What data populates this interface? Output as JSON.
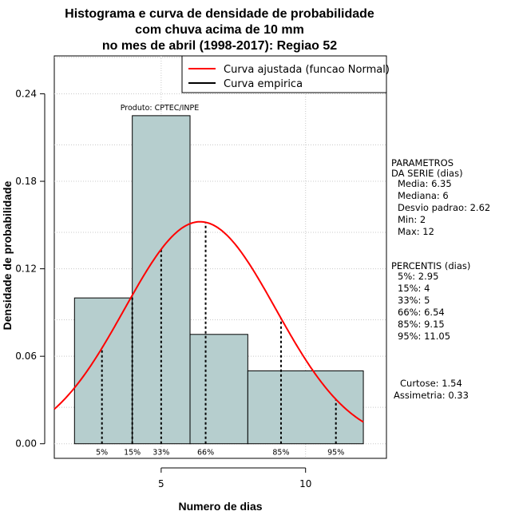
{
  "chart_data": {
    "type": "bar",
    "title_lines": [
      "Histograma e curva de densidade de probabilidade",
      "com chuva acima de 10 mm",
      "no mes de abril (1998-2017): Regiao 52"
    ],
    "xlabel": "Numero de dias",
    "ylabel": "Densidade de probabilidade",
    "xlim": [
      1.3,
      12.8
    ],
    "ylim": [
      -0.01,
      0.266
    ],
    "xticks": [
      5,
      10
    ],
    "yticks": [
      0.0,
      0.06,
      0.12,
      0.18,
      0.24
    ],
    "ytick_labels": [
      "0.00",
      "0.06",
      "0.12",
      "0.18",
      "0.24"
    ],
    "grid": true,
    "producer_note": "Produto: CPTEC/INPE",
    "histogram": [
      {
        "x0": 2,
        "x1": 4,
        "density": 0.1
      },
      {
        "x0": 4,
        "x1": 6,
        "density": 0.225
      },
      {
        "x0": 6,
        "x1": 8,
        "density": 0.075
      },
      {
        "x0": 8,
        "x1": 12,
        "density": 0.05
      }
    ],
    "normal_curve": {
      "mean": 6.35,
      "sd": 2.62,
      "name": "Curva ajustada (funcao Normal)",
      "color": "#ff0000"
    },
    "empirical_curve": {
      "name": "Curva empirica",
      "color": "#000000"
    },
    "percentile_markers": [
      {
        "label": "5%",
        "x": 2.95
      },
      {
        "label": "15%",
        "x": 4
      },
      {
        "label": "33%",
        "x": 5
      },
      {
        "label": "66%",
        "x": 6.54
      },
      {
        "label": "85%",
        "x": 9.15
      },
      {
        "label": "95%",
        "x": 11.05
      }
    ],
    "bar_color": "#b6cece"
  },
  "side_panel": {
    "params_header_1": "PARAMETROS",
    "params_header_2": "DA SERIE (dias)",
    "media": "Media: 6.35",
    "mediana": "Mediana: 6",
    "desvio": "Desvio padrao: 2.62",
    "min": "Min: 2",
    "max": "Max: 12",
    "percentis_header": "PERCENTIS (dias)",
    "p5": "5%: 2.95",
    "p15": "15%: 4",
    "p33": "33%: 5",
    "p66": "66%: 6.54",
    "p85": "85%: 9.15",
    "p95": "95%: 11.05",
    "curtose": "Curtose: 1.54",
    "assimetria": "Assimetria: 0.33"
  }
}
